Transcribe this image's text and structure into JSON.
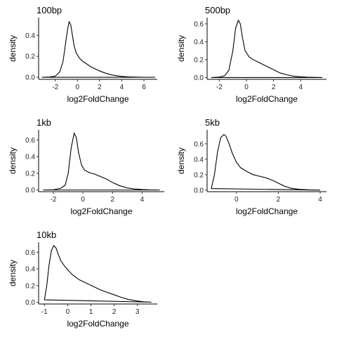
{
  "chart_data": [
    {
      "type": "line",
      "title": "100bp",
      "xlabel": "log2FoldChange",
      "ylabel": "density",
      "xlim": [
        -3.5,
        7.2
      ],
      "ylim": [
        -0.02,
        0.57
      ],
      "xticks": [
        -2,
        0,
        2,
        4,
        6
      ],
      "yticks": [
        0.0,
        0.2,
        0.4
      ],
      "grid": false,
      "series": [
        {
          "x": [
            -3.2,
            -2.5,
            -2.0,
            -1.6,
            -1.3,
            -1.1,
            -0.9,
            -0.75,
            -0.6,
            -0.45,
            -0.3,
            -0.1,
            0.2,
            0.5,
            0.8,
            1.2,
            1.6,
            2.0,
            2.5,
            3.0,
            3.5,
            4.0,
            4.5,
            5.0,
            6.0,
            7.0
          ],
          "y": [
            0.0,
            0.002,
            0.01,
            0.05,
            0.15,
            0.3,
            0.45,
            0.53,
            0.5,
            0.4,
            0.3,
            0.23,
            0.18,
            0.15,
            0.13,
            0.1,
            0.08,
            0.06,
            0.04,
            0.025,
            0.015,
            0.008,
            0.004,
            0.002,
            0.0,
            0.0
          ]
        }
      ]
    },
    {
      "type": "line",
      "title": "500bp",
      "xlabel": "log2FoldChange",
      "ylabel": "density",
      "xlim": [
        -2.9,
        5.9
      ],
      "ylim": [
        -0.02,
        0.67
      ],
      "xticks": [
        -2,
        0,
        2,
        4
      ],
      "yticks": [
        0.0,
        0.2,
        0.4,
        0.6
      ],
      "grid": false,
      "series": [
        {
          "x": [
            -2.6,
            -2.0,
            -1.6,
            -1.3,
            -1.0,
            -0.8,
            -0.6,
            -0.45,
            -0.3,
            -0.1,
            0.2,
            0.5,
            0.9,
            1.3,
            1.7,
            2.1,
            2.5,
            3.0,
            3.5,
            4.0,
            4.5,
            5.0,
            5.6
          ],
          "y": [
            0.0,
            0.005,
            0.02,
            0.08,
            0.3,
            0.55,
            0.64,
            0.6,
            0.45,
            0.3,
            0.23,
            0.2,
            0.17,
            0.14,
            0.11,
            0.08,
            0.05,
            0.03,
            0.015,
            0.008,
            0.004,
            0.002,
            0.0
          ]
        }
      ]
    },
    {
      "type": "line",
      "title": "1kb",
      "xlabel": "log2FoldChange",
      "ylabel": "density",
      "xlim": [
        -3.0,
        5.5
      ],
      "ylim": [
        -0.02,
        0.72
      ],
      "xticks": [
        -2,
        0,
        2,
        4
      ],
      "yticks": [
        0.0,
        0.2,
        0.4,
        0.6
      ],
      "grid": false,
      "series": [
        {
          "x": [
            -2.7,
            -2.0,
            -1.5,
            -1.2,
            -1.0,
            -0.8,
            -0.6,
            -0.45,
            -0.3,
            -0.1,
            0.1,
            0.4,
            0.8,
            1.2,
            1.6,
            2.0,
            2.5,
            3.0,
            3.5,
            4.0,
            4.5,
            5.2
          ],
          "y": [
            0.0,
            0.003,
            0.02,
            0.06,
            0.2,
            0.5,
            0.68,
            0.63,
            0.45,
            0.3,
            0.24,
            0.21,
            0.19,
            0.16,
            0.13,
            0.09,
            0.05,
            0.025,
            0.012,
            0.006,
            0.002,
            0.0
          ]
        }
      ]
    },
    {
      "type": "line",
      "title": "5kb",
      "xlabel": "log2FoldChange",
      "ylabel": "density",
      "xlim": [
        -1.4,
        4.3
      ],
      "ylim": [
        -0.02,
        0.78
      ],
      "xticks": [
        0,
        2,
        4
      ],
      "yticks": [
        0.0,
        0.2,
        0.4,
        0.6
      ],
      "grid": false,
      "series": [
        {
          "x": [
            -1.2,
            -1.05,
            -0.9,
            -0.75,
            -0.6,
            -0.5,
            -0.35,
            -0.2,
            0.0,
            0.2,
            0.5,
            0.8,
            1.1,
            1.4,
            1.7,
            2.0,
            2.3,
            2.6,
            3.0,
            3.5,
            4.0
          ],
          "y": [
            0.02,
            0.2,
            0.5,
            0.68,
            0.72,
            0.7,
            0.6,
            0.48,
            0.36,
            0.29,
            0.24,
            0.2,
            0.18,
            0.16,
            0.13,
            0.09,
            0.05,
            0.025,
            0.01,
            0.003,
            0.0
          ]
        }
      ]
    },
    {
      "type": "line",
      "title": "10kb",
      "xlabel": "log2FoldChange",
      "ylabel": "density",
      "xlim": [
        -1.25,
        3.85
      ],
      "ylim": [
        -0.02,
        0.72
      ],
      "xticks": [
        -1,
        0,
        1,
        2,
        3
      ],
      "yticks": [
        0.0,
        0.2,
        0.4,
        0.6
      ],
      "grid": false,
      "series": [
        {
          "x": [
            -1.0,
            -0.9,
            -0.8,
            -0.7,
            -0.6,
            -0.5,
            -0.4,
            -0.3,
            -0.15,
            0.0,
            0.2,
            0.5,
            0.8,
            1.1,
            1.4,
            1.7,
            2.0,
            2.3,
            2.6,
            3.0,
            3.3,
            3.6
          ],
          "y": [
            0.03,
            0.2,
            0.45,
            0.62,
            0.68,
            0.65,
            0.57,
            0.5,
            0.44,
            0.39,
            0.33,
            0.27,
            0.23,
            0.19,
            0.15,
            0.12,
            0.09,
            0.06,
            0.035,
            0.015,
            0.006,
            0.002
          ]
        }
      ]
    }
  ]
}
